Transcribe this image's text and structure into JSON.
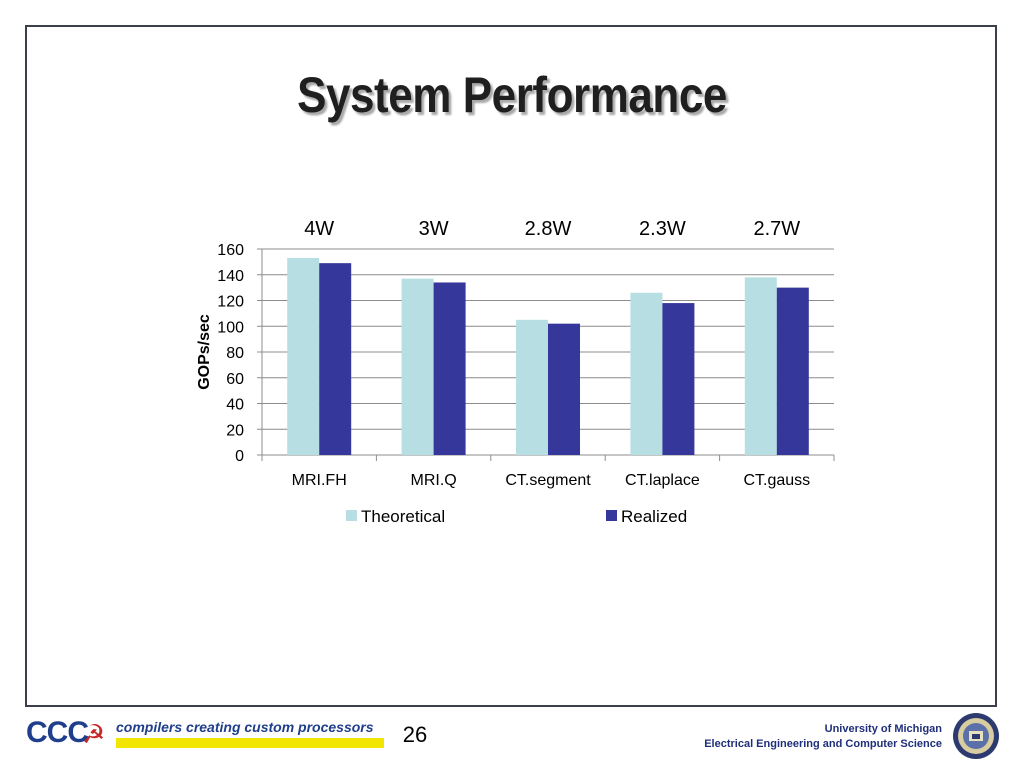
{
  "slide": {
    "title": "System Performance",
    "page_number": "26"
  },
  "footer": {
    "logo_letters": "CCC",
    "logo_icon": "hammer-and-sickle-icon",
    "tagline": "compilers creating custom processors",
    "university": "University of Michigan",
    "department": "Electrical Engineering and Computer Science",
    "seal_icon": "university-seal-icon"
  },
  "chart_data": {
    "type": "bar",
    "categories": [
      "MRI.FH",
      "MRI.Q",
      "CT.segment",
      "CT.laplace",
      "CT.gauss"
    ],
    "power_labels": [
      "4W",
      "3W",
      "2.8W",
      "2.3W",
      "2.7W"
    ],
    "series": [
      {
        "name": "Theoretical",
        "values": [
          153,
          137,
          105,
          126,
          138
        ],
        "color": "#b7dfe3"
      },
      {
        "name": "Realized",
        "values": [
          149,
          134,
          102,
          118,
          130
        ],
        "color": "#35379a"
      }
    ],
    "ylabel": "GOPs/sec",
    "xlabel": "",
    "ylim": [
      0,
      160
    ],
    "yticks": [
      0,
      20,
      40,
      60,
      80,
      100,
      120,
      140,
      160
    ],
    "grid": true,
    "legend_position": "bottom"
  }
}
